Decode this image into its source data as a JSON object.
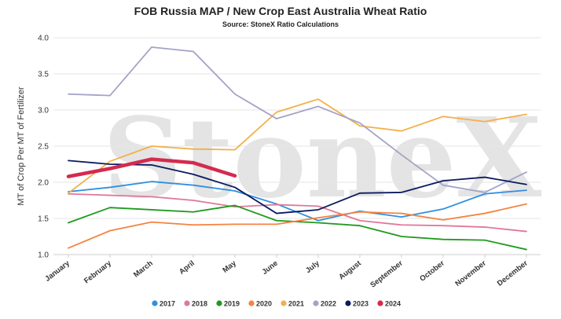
{
  "chart_data": {
    "type": "line",
    "title": "FOB Russia MAP / New Crop East Australia Wheat Ratio",
    "subtitle": "Source: StoneX Ratio Calculations",
    "ylabel": "MT of Crop Per MT of Fertilizer",
    "xlabel": "",
    "ylim": [
      1.0,
      4.0
    ],
    "yticks": [
      "1.0",
      "1.5",
      "2.0",
      "2.5",
      "3.0",
      "3.5",
      "4.0"
    ],
    "grid": true,
    "legend": "bottom",
    "watermark": "StoneX",
    "categories": [
      "January",
      "February",
      "March",
      "April",
      "May",
      "June",
      "July",
      "August",
      "September",
      "October",
      "November",
      "December"
    ],
    "series": [
      {
        "name": "2017",
        "color": "#2f8fe0",
        "values": [
          1.87,
          1.93,
          2.01,
          1.96,
          1.88,
          1.7,
          1.47,
          1.6,
          1.52,
          1.63,
          1.84,
          1.89
        ]
      },
      {
        "name": "2018",
        "color": "#e0789a",
        "values": [
          1.84,
          1.82,
          1.8,
          1.75,
          1.66,
          1.69,
          1.67,
          1.47,
          1.41,
          1.4,
          1.38,
          1.32
        ]
      },
      {
        "name": "2019",
        "color": "#1f9a1f",
        "values": [
          1.44,
          1.65,
          1.62,
          1.59,
          1.68,
          1.47,
          1.44,
          1.4,
          1.25,
          1.21,
          1.2,
          1.07
        ]
      },
      {
        "name": "2020",
        "color": "#f5833f",
        "values": [
          1.09,
          1.33,
          1.45,
          1.41,
          1.42,
          1.42,
          1.51,
          1.59,
          1.57,
          1.48,
          1.57,
          1.7
        ]
      },
      {
        "name": "2021",
        "color": "#f2b04a",
        "values": [
          1.85,
          2.29,
          2.5,
          2.46,
          2.45,
          2.97,
          3.15,
          2.78,
          2.71,
          2.91,
          2.84,
          2.94
        ]
      },
      {
        "name": "2022",
        "color": "#a3a3c8",
        "values": [
          3.22,
          3.2,
          3.87,
          3.81,
          3.22,
          2.88,
          3.05,
          2.82,
          2.38,
          1.96,
          1.86,
          2.14
        ]
      },
      {
        "name": "2023",
        "color": "#0d1a5e",
        "values": [
          2.3,
          2.25,
          2.24,
          2.11,
          1.93,
          1.57,
          1.62,
          1.85,
          1.86,
          2.02,
          2.07,
          1.97
        ]
      },
      {
        "name": "2024",
        "color": "#d42a4f",
        "values": [
          2.08,
          2.19,
          2.32,
          2.27,
          2.09,
          null,
          null,
          null,
          null,
          null,
          null,
          null
        ]
      }
    ]
  }
}
